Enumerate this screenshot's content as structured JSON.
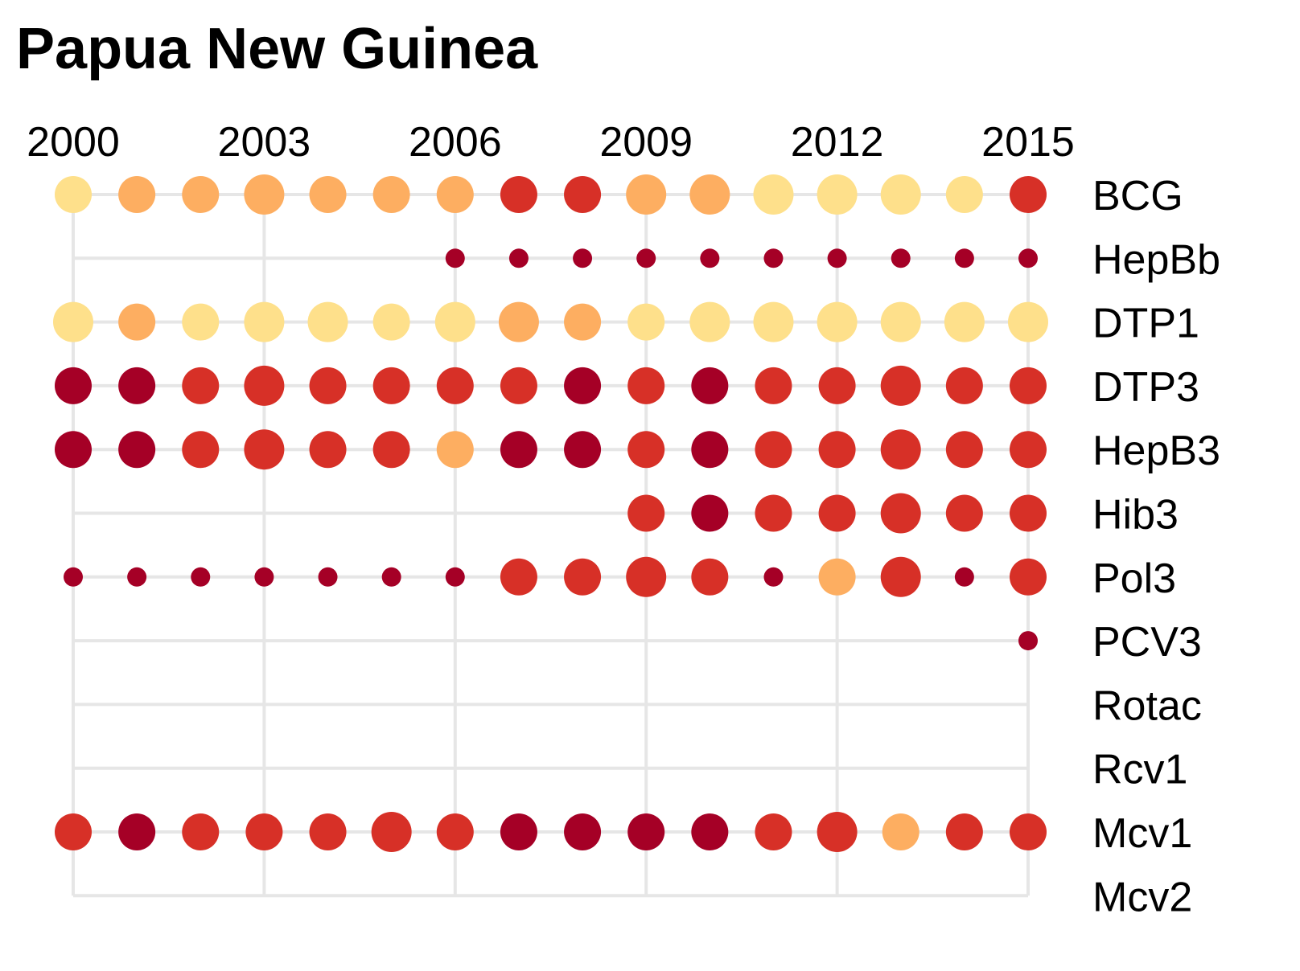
{
  "chart_data": {
    "type": "scatter",
    "title": "Papua New Guinea",
    "xlabel": "",
    "ylabel": "",
    "years": [
      2000,
      2001,
      2002,
      2003,
      2004,
      2005,
      2006,
      2007,
      2008,
      2009,
      2010,
      2011,
      2012,
      2013,
      2014,
      2015
    ],
    "x_tick_labels": [
      "2000",
      "2003",
      "2006",
      "2009",
      "2012",
      "2015"
    ],
    "vaccines": [
      "BCG",
      "HepBb",
      "DTP1",
      "DTP3",
      "HepB3",
      "Hib3",
      "Pol3",
      "PCV3",
      "Rotac",
      "Rcv1",
      "Mcv1",
      "Mcv2"
    ],
    "grid": true,
    "legend": "none",
    "size_levels": [
      "small",
      "medium",
      "large"
    ],
    "color_levels": {
      "c1": "#fee08b",
      "c2": "#fdae61",
      "c3": "#d73027",
      "c4": "#a50026"
    },
    "rows": [
      {
        "vaccine": "BCG",
        "start_year": 2000,
        "colors": [
          "c1",
          "c2",
          "c2",
          "c2",
          "c2",
          "c2",
          "c2",
          "c3",
          "c3",
          "c2",
          "c2",
          "c1",
          "c1",
          "c1",
          "c1",
          "c3"
        ],
        "sizes": [
          "medium",
          "medium",
          "medium",
          "large",
          "medium",
          "medium",
          "medium",
          "medium",
          "medium",
          "large",
          "large",
          "large",
          "large",
          "large",
          "medium",
          "medium"
        ]
      },
      {
        "vaccine": "HepBb",
        "start_year": 2006,
        "colors": [
          "c4",
          "c4",
          "c4",
          "c4",
          "c4",
          "c4",
          "c4",
          "c4",
          "c4",
          "c4"
        ],
        "sizes": [
          "small",
          "small",
          "small",
          "small",
          "small",
          "small",
          "small",
          "small",
          "small",
          "small"
        ]
      },
      {
        "vaccine": "DTP1",
        "start_year": 2000,
        "colors": [
          "c1",
          "c2",
          "c1",
          "c1",
          "c1",
          "c1",
          "c1",
          "c2",
          "c2",
          "c1",
          "c1",
          "c1",
          "c1",
          "c1",
          "c1",
          "c1"
        ],
        "sizes": [
          "large",
          "medium",
          "medium",
          "large",
          "large",
          "medium",
          "large",
          "large",
          "medium",
          "medium",
          "large",
          "large",
          "large",
          "large",
          "large",
          "large"
        ]
      },
      {
        "vaccine": "DTP3",
        "start_year": 2000,
        "colors": [
          "c4",
          "c4",
          "c3",
          "c3",
          "c3",
          "c3",
          "c3",
          "c3",
          "c4",
          "c3",
          "c4",
          "c3",
          "c3",
          "c3",
          "c3",
          "c3"
        ],
        "sizes": [
          "medium",
          "medium",
          "medium",
          "large",
          "medium",
          "medium",
          "medium",
          "medium",
          "medium",
          "medium",
          "medium",
          "medium",
          "medium",
          "large",
          "medium",
          "medium"
        ]
      },
      {
        "vaccine": "HepB3",
        "start_year": 2000,
        "colors": [
          "c4",
          "c4",
          "c3",
          "c3",
          "c3",
          "c3",
          "c2",
          "c4",
          "c4",
          "c3",
          "c4",
          "c3",
          "c3",
          "c3",
          "c3",
          "c3"
        ],
        "sizes": [
          "medium",
          "medium",
          "medium",
          "large",
          "medium",
          "medium",
          "medium",
          "medium",
          "medium",
          "medium",
          "medium",
          "medium",
          "medium",
          "large",
          "medium",
          "medium"
        ]
      },
      {
        "vaccine": "Hib3",
        "start_year": 2009,
        "colors": [
          "c3",
          "c4",
          "c3",
          "c3",
          "c3",
          "c3",
          "c3"
        ],
        "sizes": [
          "medium",
          "medium",
          "medium",
          "medium",
          "large",
          "medium",
          "medium"
        ]
      },
      {
        "vaccine": "Pol3",
        "start_year": 2000,
        "colors": [
          "c4",
          "c4",
          "c4",
          "c4",
          "c4",
          "c4",
          "c4",
          "c3",
          "c3",
          "c3",
          "c3",
          "c4",
          "c2",
          "c3",
          "c4",
          "c3"
        ],
        "sizes": [
          "small",
          "small",
          "small",
          "small",
          "small",
          "small",
          "small",
          "medium",
          "medium",
          "large",
          "medium",
          "small",
          "medium",
          "large",
          "small",
          "medium"
        ]
      },
      {
        "vaccine": "PCV3",
        "start_year": 2015,
        "colors": [
          "c4"
        ],
        "sizes": [
          "small"
        ]
      },
      {
        "vaccine": "Rotac",
        "start_year": null,
        "colors": [],
        "sizes": []
      },
      {
        "vaccine": "Rcv1",
        "start_year": null,
        "colors": [],
        "sizes": []
      },
      {
        "vaccine": "Mcv1",
        "start_year": 2000,
        "colors": [
          "c3",
          "c4",
          "c3",
          "c3",
          "c3",
          "c3",
          "c3",
          "c4",
          "c4",
          "c4",
          "c4",
          "c3",
          "c3",
          "c2",
          "c3",
          "c3"
        ],
        "sizes": [
          "medium",
          "medium",
          "medium",
          "medium",
          "medium",
          "large",
          "medium",
          "medium",
          "medium",
          "medium",
          "medium",
          "medium",
          "large",
          "medium",
          "medium",
          "medium"
        ]
      },
      {
        "vaccine": "Mcv2",
        "start_year": null,
        "colors": [],
        "sizes": []
      }
    ]
  }
}
